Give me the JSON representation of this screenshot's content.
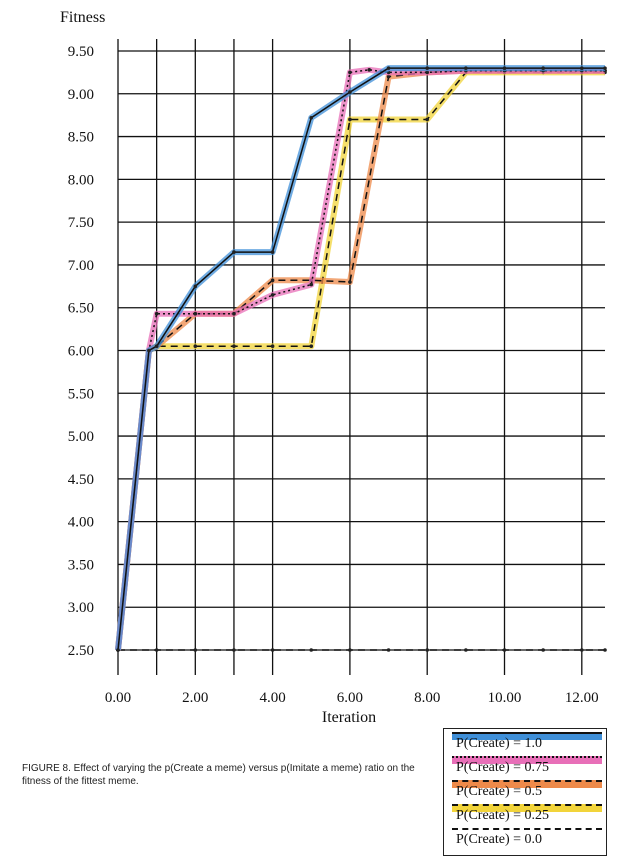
{
  "chart_data": {
    "type": "line",
    "ylabel": "Fitness",
    "xlabel": "Iteration",
    "xlim": [
      0,
      12.6
    ],
    "ylim": [
      2.5,
      9.5
    ],
    "xticks": [
      0,
      2,
      4,
      6,
      8,
      10,
      12
    ],
    "xtick_labels": [
      "0.00",
      "2.00",
      "4.00",
      "6.00",
      "8.00",
      "10.00",
      "12.00"
    ],
    "yticks": [
      2.5,
      3,
      3.5,
      4,
      4.5,
      5,
      5.5,
      6,
      6.5,
      7,
      7.5,
      8,
      8.5,
      9,
      9.5
    ],
    "ytick_labels": [
      "2.50",
      "3.00",
      "3.50",
      "4.00",
      "4.50",
      "5.00",
      "5.50",
      "6.00",
      "6.50",
      "7.00",
      "7.50",
      "8.00",
      "8.50",
      "9.00",
      "9.50"
    ],
    "grid": true,
    "legend_position": "bottom-right, outside plot",
    "series": [
      {
        "name": "P(Create) = 1.0",
        "color": "#3f8fd8",
        "dash": "solid",
        "x": [
          0,
          0.8,
          1,
          2,
          3,
          4,
          5,
          6,
          7,
          8,
          9,
          10,
          11,
          12,
          12.6
        ],
        "y": [
          2.5,
          6.0,
          6.05,
          6.75,
          7.15,
          7.15,
          8.72,
          9.02,
          9.3,
          9.3,
          9.3,
          9.3,
          9.3,
          9.3,
          9.3
        ]
      },
      {
        "name": "P(Create) = 0.75",
        "color": "#e86fb8",
        "dash": "dotted",
        "x": [
          0,
          0.8,
          1,
          2,
          3,
          4,
          5,
          6,
          6.5,
          7,
          8,
          9,
          10,
          11,
          12,
          12.6
        ],
        "y": [
          2.5,
          6.0,
          6.43,
          6.43,
          6.43,
          6.65,
          6.77,
          9.25,
          9.28,
          9.25,
          9.25,
          9.27,
          9.27,
          9.27,
          9.27,
          9.27
        ]
      },
      {
        "name": "P(Create) = 0.5",
        "color": "#ee8a4a",
        "dash": "dashed",
        "x": [
          0,
          0.8,
          1,
          2,
          3,
          4,
          5,
          6,
          7,
          8,
          9,
          10,
          11,
          12,
          12.6
        ],
        "y": [
          2.5,
          6.0,
          6.05,
          6.43,
          6.43,
          6.82,
          6.82,
          6.8,
          9.2,
          9.25,
          9.27,
          9.27,
          9.27,
          9.27,
          9.27
        ]
      },
      {
        "name": "P(Create) = 0.25",
        "color": "#f2d43a",
        "dash": "dashed",
        "x": [
          0,
          0.8,
          1,
          2,
          3,
          4,
          5,
          6,
          7,
          8,
          9,
          10,
          11,
          12,
          12.6
        ],
        "y": [
          2.5,
          6.0,
          6.05,
          6.05,
          6.05,
          6.05,
          6.05,
          8.7,
          8.7,
          8.7,
          9.25,
          9.25,
          9.25,
          9.25,
          9.25
        ]
      },
      {
        "name": "P(Create) = 0.0",
        "color": "#333333",
        "dash": "dashed",
        "x": [
          0,
          1,
          2,
          3,
          4,
          5,
          6,
          7,
          8,
          9,
          10,
          11,
          12,
          12.6
        ],
        "y": [
          2.5,
          2.5,
          2.5,
          2.5,
          2.5,
          2.5,
          2.5,
          2.5,
          2.5,
          2.5,
          2.5,
          2.5,
          2.5,
          2.5
        ]
      }
    ]
  },
  "caption": "FIGURE 8. Effect of varying the p(Create a meme) versus p(Imitate a meme) ratio on the fitness of the fittest meme."
}
